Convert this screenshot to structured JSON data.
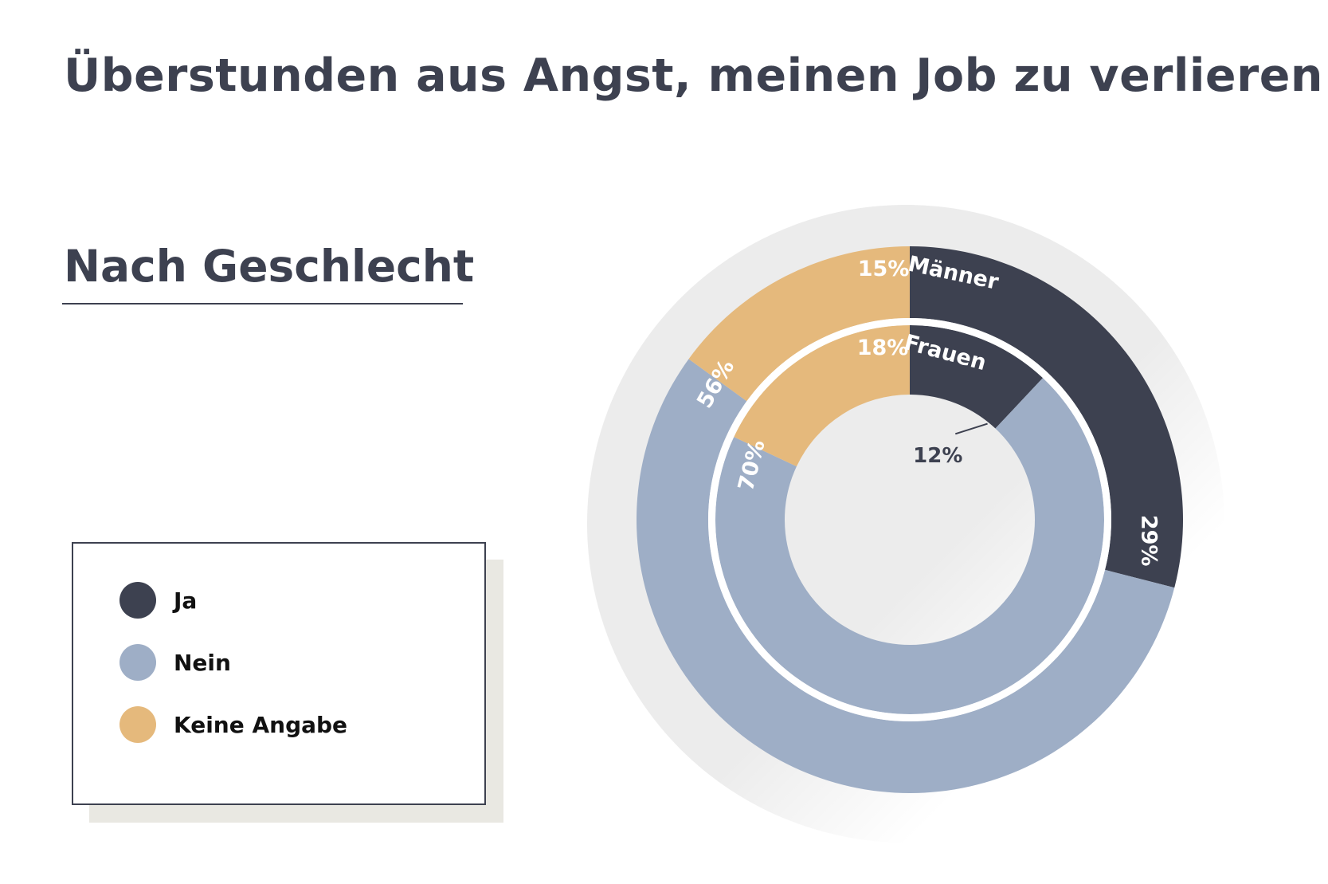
{
  "title": "Überstunden aus Angst, meinen Job zu verlieren",
  "subtitle": "Nach Geschlecht",
  "legend": [
    {
      "label": "Ja",
      "color": "#3d4150"
    },
    {
      "label": "Nein",
      "color": "#9eaec6"
    },
    {
      "label": "Keine Angabe",
      "color": "#e5b97c"
    }
  ],
  "chart_data": {
    "type": "pie",
    "variant": "nested-donut",
    "categories": [
      "Ja",
      "Nein",
      "Keine Angabe"
    ],
    "colors": [
      "#3d4150",
      "#9eaec6",
      "#e5b97c"
    ],
    "series": [
      {
        "name": "Männer",
        "ring": "outer",
        "values": [
          29,
          56,
          15
        ],
        "labels": [
          "29%",
          "56%",
          "15%"
        ]
      },
      {
        "name": "Frauen",
        "ring": "inner",
        "values": [
          12,
          70,
          18
        ],
        "labels": [
          "12%",
          "70%",
          "18%"
        ]
      }
    ]
  }
}
